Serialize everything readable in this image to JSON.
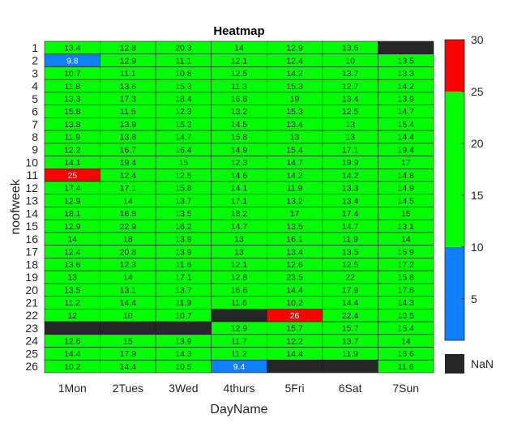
{
  "chart_data": {
    "type": "heatmap",
    "title": "Heatmap",
    "xlabel": "DayName",
    "ylabel": "noofweek",
    "x_categories": [
      "1Mon",
      "2Tues",
      "3Wed",
      "4thurs",
      "5Fri",
      "6Sat",
      "7Sun"
    ],
    "y_categories": [
      "1",
      "2",
      "3",
      "4",
      "5",
      "6",
      "7",
      "8",
      "9",
      "10",
      "11",
      "12",
      "13",
      "14",
      "15",
      "16",
      "17",
      "18",
      "19",
      "20",
      "21",
      "22",
      "23",
      "24",
      "25",
      "26"
    ],
    "values": [
      [
        13.4,
        12.8,
        20.3,
        14,
        12.9,
        13.6,
        null
      ],
      [
        9.8,
        12.9,
        11.1,
        12.1,
        12.4,
        10,
        13.5
      ],
      [
        10.7,
        11.1,
        10.8,
        12.5,
        14.2,
        13.7,
        13.3
      ],
      [
        11.8,
        13.6,
        15.3,
        11.3,
        15.3,
        12.7,
        14.2
      ],
      [
        13.3,
        17.3,
        18.4,
        16.8,
        19,
        13.4,
        13.9
      ],
      [
        15.8,
        11.5,
        12.3,
        13.2,
        15.3,
        12.5,
        14.7
      ],
      [
        13.8,
        13.9,
        15.3,
        14.5,
        13.4,
        13,
        15.4
      ],
      [
        11.9,
        13.8,
        14.7,
        15.8,
        13,
        13,
        14.4
      ],
      [
        12.2,
        16.7,
        16.4,
        14.9,
        15.4,
        17.1,
        19.4
      ],
      [
        14.1,
        19.4,
        15,
        12.3,
        14.7,
        19.9,
        17
      ],
      [
        25,
        12.4,
        12.5,
        14.6,
        14.2,
        14.2,
        14.8
      ],
      [
        17.4,
        17.1,
        15.8,
        14.1,
        11.9,
        13.3,
        14.9
      ],
      [
        12.9,
        14,
        13.7,
        17.1,
        13.2,
        13.4,
        14.5
      ],
      [
        18.1,
        16.8,
        13.5,
        18.2,
        17,
        17.4,
        15
      ],
      [
        12.9,
        22.9,
        16.2,
        14.7,
        13.5,
        14.7,
        13.1
      ],
      [
        14,
        18,
        13.9,
        13,
        16.1,
        11.9,
        14
      ],
      [
        12.4,
        20.8,
        13.9,
        13,
        13.4,
        13.5,
        16.9
      ],
      [
        13.6,
        12.3,
        11.6,
        12.1,
        12.6,
        12.5,
        17.2
      ],
      [
        13,
        14,
        17.1,
        12.8,
        23.5,
        22,
        15.8
      ],
      [
        13.5,
        13.1,
        13.7,
        16.6,
        14.4,
        17.9,
        17.6
      ],
      [
        11.2,
        14.4,
        11.9,
        11.6,
        10.2,
        14.4,
        14.3
      ],
      [
        12,
        10,
        10.7,
        null,
        26,
        22.4,
        10.5
      ],
      [
        null,
        null,
        null,
        12.9,
        15.7,
        15.7,
        15.4
      ],
      [
        12.6,
        15,
        13.9,
        11.7,
        12.2,
        13.7,
        14
      ],
      [
        14.4,
        17.9,
        14.3,
        11.2,
        14.4,
        11.9,
        16.6
      ],
      [
        10.2,
        14.4,
        10.5,
        9.4,
        null,
        null,
        11.6
      ]
    ],
    "colorbar": {
      "range": [
        1,
        30
      ],
      "ticks": [
        "5",
        "10",
        "15",
        "20",
        "25",
        "30"
      ],
      "bands": [
        {
          "from": 1,
          "to": 10,
          "color": "#0f7fff"
        },
        {
          "from": 10,
          "to": 25,
          "color": "#00ff00"
        },
        {
          "from": 25,
          "to": 30,
          "color": "#ff0000"
        }
      ],
      "missing_label": "NaN",
      "missing_color": "#262626"
    },
    "text_colors": {
      "light": "#ffffff",
      "dark": "#1a1a1a"
    },
    "grid_color": "#1a1a1a"
  }
}
